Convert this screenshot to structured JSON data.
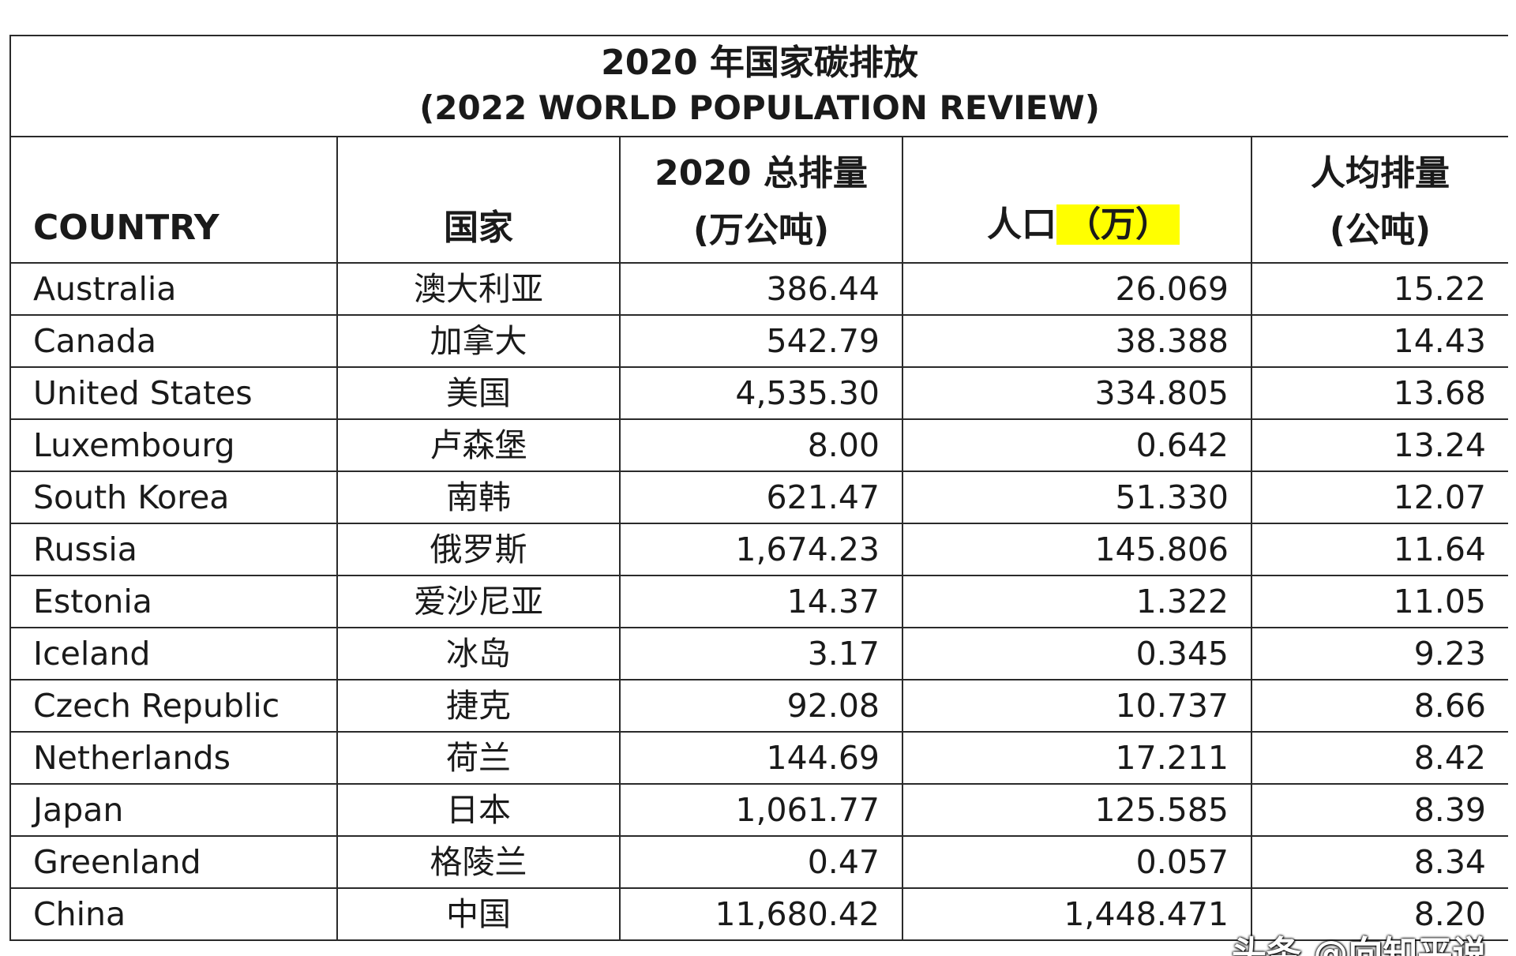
{
  "chart_data": {
    "type": "table",
    "title": "2020 年国家碳排放",
    "subtitle": "(2022 WORLD POPULATION REVIEW)",
    "headers": {
      "country": "COUNTRY",
      "country_zh": "国家",
      "total_line1": "2020 总排量",
      "total_line2": "(万公吨)",
      "pop_main": "人口",
      "pop_unit": "（万）",
      "per_capita_line1": "人均排量",
      "per_capita_line2": "(公吨)"
    },
    "rows": [
      {
        "country": "Australia",
        "country_zh": "澳大利亚",
        "total": "386.44",
        "population": "26.069",
        "per_capita": "15.22"
      },
      {
        "country": "Canada",
        "country_zh": "加拿大",
        "total": "542.79",
        "population": "38.388",
        "per_capita": "14.43"
      },
      {
        "country": "United States",
        "country_zh": "美国",
        "total": "4,535.30",
        "population": "334.805",
        "per_capita": "13.68"
      },
      {
        "country": "Luxembourg",
        "country_zh": "卢森堡",
        "total": "8.00",
        "population": "0.642",
        "per_capita": "13.24"
      },
      {
        "country": "South Korea",
        "country_zh": "南韩",
        "total": "621.47",
        "population": "51.330",
        "per_capita": "12.07"
      },
      {
        "country": "Russia",
        "country_zh": "俄罗斯",
        "total": "1,674.23",
        "population": "145.806",
        "per_capita": "11.64"
      },
      {
        "country": "Estonia",
        "country_zh": "爱沙尼亚",
        "total": "14.37",
        "population": "1.322",
        "per_capita": "11.05"
      },
      {
        "country": "Iceland",
        "country_zh": "冰岛",
        "total": "3.17",
        "population": "0.345",
        "per_capita": "9.23"
      },
      {
        "country": "Czech Republic",
        "country_zh": "捷克",
        "total": "92.08",
        "population": "10.737",
        "per_capita": "8.66"
      },
      {
        "country": "Netherlands",
        "country_zh": "荷兰",
        "total": "144.69",
        "population": "17.211",
        "per_capita": "8.42"
      },
      {
        "country": "Japan",
        "country_zh": "日本",
        "total": "1,061.77",
        "population": "125.585",
        "per_capita": "8.39"
      },
      {
        "country": "Greenland",
        "country_zh": "格陵兰",
        "total": "0.47",
        "population": "0.057",
        "per_capita": "8.34"
      },
      {
        "country": "China",
        "country_zh": "中国",
        "total": "11,680.42",
        "population": "1,448.471",
        "per_capita": "8.20"
      }
    ],
    "highlight_color": "#ffff00"
  },
  "watermark": "头条 @向知平说"
}
